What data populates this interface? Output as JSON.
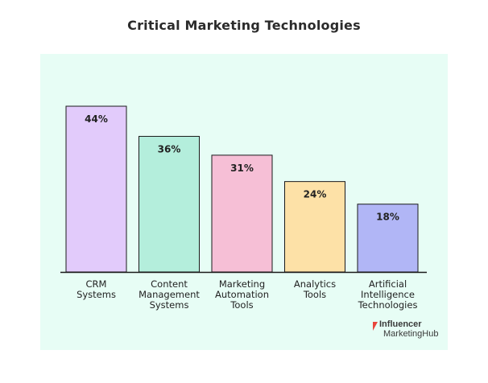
{
  "chart_data": {
    "type": "bar",
    "title": "Critical Marketing Technologies",
    "categories": [
      [
        "CRM",
        "Systems"
      ],
      [
        "Content",
        "Management",
        "Systems"
      ],
      [
        "Marketing",
        "Automation",
        "Tools"
      ],
      [
        "Analytics",
        "Tools"
      ],
      [
        "Artificial",
        "Intelligence",
        "Technologies"
      ]
    ],
    "values": [
      44,
      36,
      31,
      24,
      18
    ],
    "value_labels": [
      "44%",
      "36%",
      "31%",
      "24%",
      "18%"
    ],
    "colors": [
      "#e2cbfb",
      "#b4eedc",
      "#f6bfd6",
      "#fde1a7",
      "#b1b6f6"
    ],
    "panel_color": "#e7fdf5",
    "grid": false,
    "legend": "none"
  },
  "branding": {
    "line1": "Influencer",
    "line2": "MarketingHub",
    "accent": "#e8453c"
  }
}
